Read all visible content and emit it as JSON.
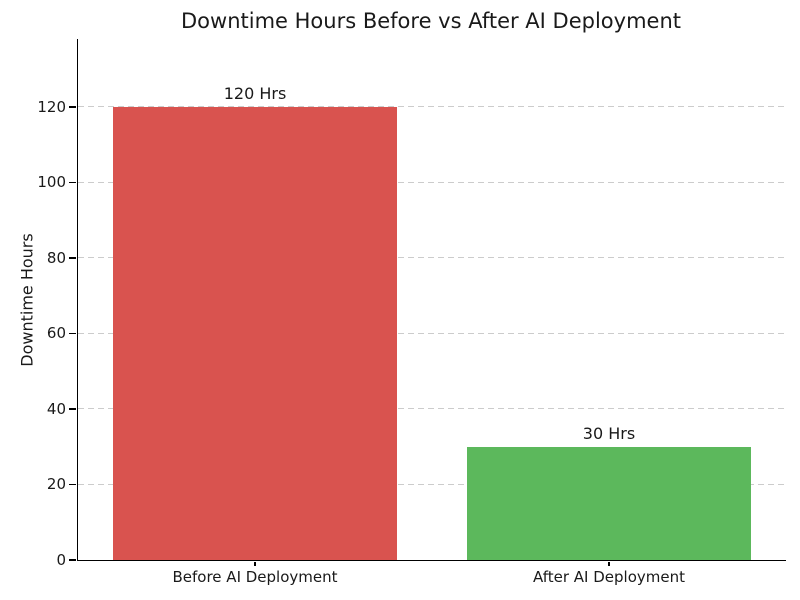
{
  "chart_data": {
    "type": "bar",
    "title": "Downtime Hours Before vs After AI Deployment",
    "xlabel": "",
    "ylabel": "Downtime Hours",
    "categories": [
      "Before AI Deployment",
      "After AI Deployment"
    ],
    "values": [
      120,
      30
    ],
    "bar_labels": [
      "120 Hrs",
      "30 Hrs"
    ],
    "bar_colors": [
      "#d9534f",
      "#5cb85c"
    ],
    "bar_width_fraction": 0.8,
    "ylim": [
      0,
      138
    ],
    "yticks": [
      0,
      20,
      40,
      60,
      80,
      100,
      120
    ],
    "grid": {
      "axis": "y",
      "style": "dashed",
      "color": "#cccccc"
    },
    "legend": "none",
    "colors": {
      "axis": "#000000",
      "text": "#1a1a1a",
      "title": "#1a1a1a",
      "background": "#ffffff"
    }
  }
}
